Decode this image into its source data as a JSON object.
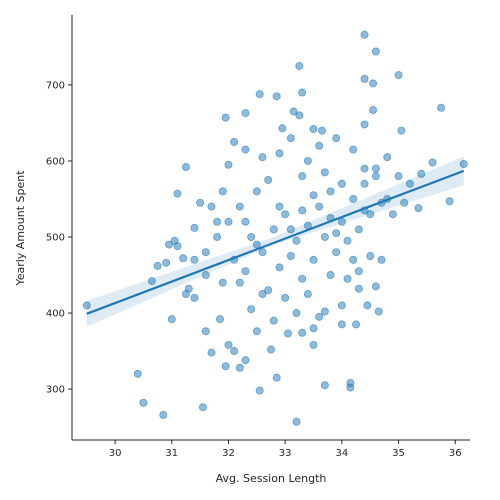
{
  "chart_data": {
    "type": "scatter",
    "x_label": "Avg. Session Length",
    "y_label": "Yearly Amount Spent",
    "color": "#1f77b4",
    "xlim": [
      29.24,
      36.26
    ],
    "xticks": [
      30,
      31,
      32,
      33,
      34,
      35,
      36
    ],
    "ylim": [
      233,
      792
    ],
    "yticks": [
      300,
      400,
      500,
      600,
      700
    ],
    "x": [
      29.5,
      30.4,
      30.5,
      30.85,
      31.55,
      32.55,
      32.85,
      33.2,
      33.7,
      34.15,
      34.15,
      34.4,
      34.6,
      35,
      34.4,
      34.55,
      33.25,
      32.55,
      32.85,
      33.3,
      35.75,
      34.55,
      32.3,
      33.15,
      33.25,
      31.95,
      35.05,
      34.4,
      33.5,
      32.95,
      33.65,
      31.25,
      31.1,
      35.9,
      35.6,
      36.15,
      35.4,
      35.35,
      30.65,
      30.75,
      30.9,
      30.95,
      31.05,
      31.1,
      31.0,
      31.25,
      31.3,
      31.4,
      31.6,
      31.7,
      31.85,
      32.0,
      31.95,
      32.1,
      32.2,
      32.3,
      32.5,
      32.75,
      33.05,
      33.3,
      33.5,
      33.5,
      33.7,
      34.0,
      34.25,
      34.45,
      34.65,
      34.6,
      34.3,
      32.0,
      32.2,
      32.4,
      32.6,
      32.8,
      33.0,
      33.2,
      33.4,
      33.6,
      33.8,
      34.0,
      34.2,
      34.4,
      34.6,
      34.8,
      32.1,
      32.3,
      32.5,
      32.7,
      32.9,
      33.1,
      33.3,
      33.5,
      33.7,
      33.9,
      34.1,
      34.3,
      34.5,
      34.7,
      31.8,
      31.6,
      31.4,
      31.5,
      31.7,
      31.9,
      32.0,
      32.1,
      32.3,
      32.6,
      32.9,
      33.1,
      33.4,
      33.6,
      33.9,
      34.2,
      34.4,
      34.8,
      35.0,
      35.2,
      34.9,
      35.1,
      34.5,
      34.7,
      34.3,
      34.1,
      33.8,
      33.4,
      33.0,
      32.6,
      32.2,
      31.9,
      31.6,
      32.4,
      32.8,
      33.2,
      33.6,
      34.0,
      31.2,
      31.4,
      31.8,
      32.5,
      32.7,
      33.3,
      33.5,
      33.7,
      34.0,
      34.6,
      34.2,
      33.9,
      32.3,
      32.9,
      33.1,
      33.3,
      33.8,
      34.4
    ],
    "y": [
      410,
      320,
      282,
      266,
      276,
      298,
      315,
      257,
      305,
      308,
      302,
      766,
      744,
      713,
      708,
      702,
      725,
      688,
      685,
      690,
      670,
      667,
      663,
      665,
      660,
      657,
      640,
      648,
      642,
      643,
      640,
      592,
      557,
      547,
      598,
      596,
      583,
      538,
      442,
      462,
      466,
      490,
      495,
      488,
      392,
      425,
      432,
      420,
      376,
      348,
      392,
      358,
      330,
      350,
      328,
      338,
      376,
      352,
      373,
      374,
      358,
      380,
      402,
      385,
      385,
      410,
      402,
      435,
      432,
      520,
      540,
      500,
      480,
      510,
      530,
      495,
      515,
      540,
      560,
      520,
      550,
      570,
      580,
      550,
      470,
      455,
      490,
      430,
      460,
      475,
      445,
      470,
      500,
      480,
      495,
      510,
      530,
      545,
      500,
      480,
      470,
      545,
      540,
      560,
      595,
      625,
      615,
      605,
      610,
      630,
      600,
      620,
      630,
      615,
      590,
      605,
      580,
      570,
      530,
      545,
      475,
      470,
      455,
      445,
      450,
      425,
      420,
      425,
      440,
      440,
      450,
      405,
      390,
      400,
      395,
      410,
      472,
      512,
      520,
      560,
      575,
      580,
      555,
      585,
      570,
      590,
      470,
      505,
      520,
      540,
      510,
      535,
      525,
      535
    ],
    "regression": {
      "x": [
        29.5,
        36.15
      ],
      "y": [
        399,
        587
      ]
    },
    "ci": {
      "x": [
        29.5,
        32.8,
        36.15
      ],
      "lower": [
        382,
        490,
        568
      ],
      "upper": [
        416,
        500,
        606
      ]
    }
  }
}
